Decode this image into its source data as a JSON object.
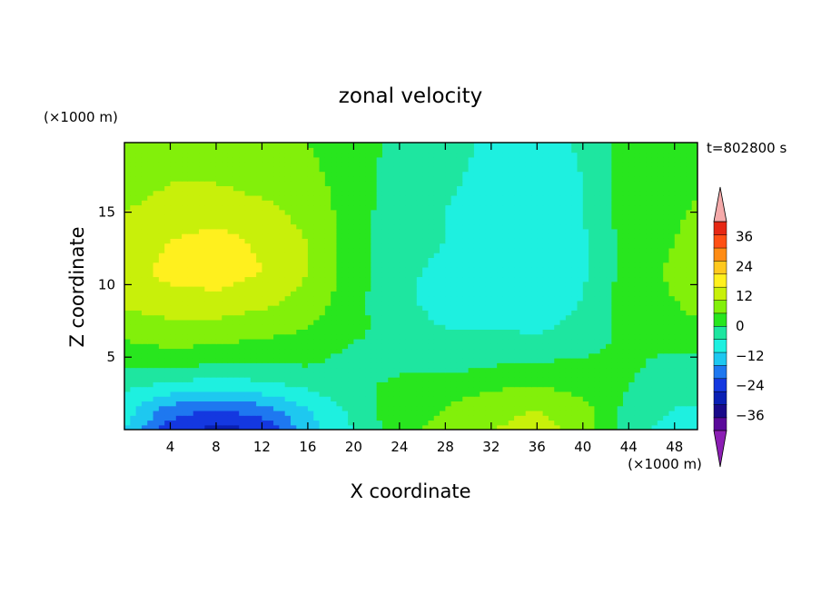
{
  "chart_data": {
    "type": "heatmap",
    "title": "zonal velocity",
    "xlabel": "X coordinate",
    "ylabel": "Z coordinate",
    "x_unit": "(×1000 m)",
    "y_unit": "(×1000 m)",
    "time_label": "t=802800 s",
    "xlim": [
      0,
      50
    ],
    "ylim": [
      0,
      19.8
    ],
    "xticks": [
      4,
      8,
      12,
      16,
      20,
      24,
      28,
      32,
      36,
      40,
      44,
      48
    ],
    "yticks": [
      5,
      10,
      15
    ],
    "xtick_labels": [
      "4",
      "8",
      "12",
      "16",
      "20",
      "24",
      "28",
      "32",
      "36",
      "40",
      "44",
      "48"
    ],
    "ytick_labels": [
      "5",
      "10",
      "15"
    ],
    "colorbar": {
      "levels": [
        -42,
        -36,
        -30,
        -24,
        -18,
        -12,
        -6,
        0,
        6,
        12,
        18,
        24,
        30,
        36,
        42
      ],
      "tick_values": [
        -36,
        -24,
        -12,
        0,
        12,
        24,
        36
      ],
      "tick_labels": [
        "−36",
        "−24",
        "−12",
        "0",
        "12",
        "24",
        "36"
      ],
      "band_colors": [
        "#5a0a9a",
        "#1a0a8a",
        "#0a20b4",
        "#1438e0",
        "#1e78f0",
        "#1ec8f0",
        "#1ef0e0",
        "#1ee6a0",
        "#28e61e",
        "#82f00a",
        "#c8f00a",
        "#fff01e",
        "#ffc81e",
        "#ff8c14",
        "#ff5014",
        "#e62814"
      ],
      "under_color": "#8c1eb4",
      "over_color": "#f5aaaa"
    },
    "field_description": "Estimated zonal velocity field u(x,z); grid values in m/s estimated from contour colours",
    "grid": {
      "x": [
        0,
        4,
        8,
        12,
        16,
        20,
        24,
        28,
        32,
        36,
        40,
        44,
        48,
        50
      ],
      "z": [
        0,
        1.5,
        3,
        5,
        7,
        9,
        11,
        13,
        15,
        17,
        19.8
      ],
      "u": [
        [
          -12,
          -28,
          -32,
          -30,
          -15,
          -6,
          4,
          8,
          12,
          14,
          10,
          -4,
          -8,
          -8
        ],
        [
          -9,
          -20,
          -24,
          -20,
          -12,
          -4,
          4,
          6,
          10,
          12,
          8,
          -2,
          -6,
          -6
        ],
        [
          -5,
          -8,
          -10,
          -8,
          -5,
          -2,
          2,
          3,
          5,
          6,
          4,
          0,
          -3,
          -3
        ],
        [
          3,
          4,
          3,
          2,
          2,
          -2,
          -3,
          -4,
          -2,
          -1,
          0,
          1,
          -1,
          -1
        ],
        [
          8,
          10,
          10,
          8,
          6,
          2,
          -4,
          -6,
          -6,
          -7,
          -4,
          2,
          4,
          5
        ],
        [
          14,
          16,
          16,
          14,
          10,
          2,
          -5,
          -8,
          -9,
          -10,
          -6,
          3,
          6,
          8
        ],
        [
          15,
          20,
          22,
          18,
          12,
          3,
          -5,
          -7,
          -11,
          -12,
          -7,
          3,
          7,
          10
        ],
        [
          14,
          18,
          20,
          17,
          12,
          3,
          -4,
          -6,
          -10,
          -12,
          -7,
          3,
          6,
          9
        ],
        [
          12,
          15,
          16,
          14,
          10,
          3,
          -4,
          -6,
          -9,
          -11,
          -6,
          3,
          5,
          7
        ],
        [
          9,
          12,
          12,
          10,
          8,
          3,
          -3,
          -5,
          -8,
          -10,
          -6,
          3,
          4,
          5
        ],
        [
          7,
          8,
          8,
          7,
          6,
          3,
          -2,
          -4,
          -7,
          -9,
          -5,
          3,
          3,
          4
        ]
      ]
    }
  }
}
